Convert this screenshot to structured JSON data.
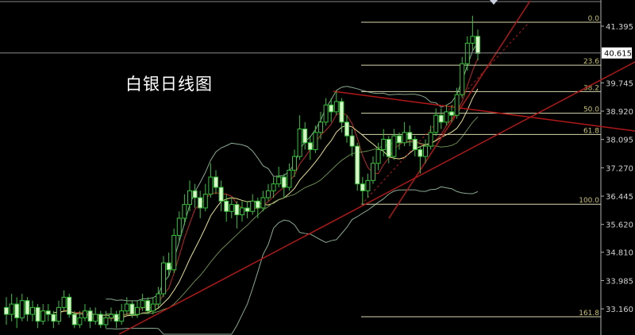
{
  "chart_data": {
    "type": "candlestick",
    "title": "白银日线图",
    "ylim": [
      32.6,
      42.15
    ],
    "y_ticks": [
      "41.395",
      "39.745",
      "38.920",
      "38.095",
      "37.270",
      "36.445",
      "35.620",
      "34.810",
      "33.985",
      "33.160"
    ],
    "current_price": "40.615",
    "fibonacci": [
      {
        "label": "0.0",
        "price": 41.51
      },
      {
        "label": "23.6",
        "price": 40.26
      },
      {
        "label": "38.2",
        "price": 39.49
      },
      {
        "label": "50.0",
        "price": 38.86
      },
      {
        "label": "61.8",
        "price": 38.24
      },
      {
        "label": "100.0",
        "price": 36.21
      },
      {
        "label": "161.8",
        "price": 32.93
      }
    ],
    "ohlc": [
      [
        33.2,
        33.5,
        32.7,
        33.0
      ],
      [
        33.0,
        33.6,
        32.8,
        33.3
      ],
      [
        33.3,
        33.5,
        32.6,
        32.9
      ],
      [
        32.9,
        33.6,
        32.8,
        33.4
      ],
      [
        33.4,
        33.5,
        32.8,
        33.0
      ],
      [
        33.0,
        33.4,
        32.8,
        33.2
      ],
      [
        33.2,
        33.3,
        32.6,
        32.8
      ],
      [
        32.8,
        33.3,
        32.7,
        33.1
      ],
      [
        33.1,
        33.3,
        32.8,
        33.0
      ],
      [
        33.0,
        33.1,
        32.6,
        32.8
      ],
      [
        32.8,
        33.4,
        32.7,
        33.2
      ],
      [
        33.2,
        33.7,
        33.1,
        33.5
      ],
      [
        33.5,
        33.6,
        32.9,
        33.0
      ],
      [
        33.0,
        33.1,
        32.6,
        32.7
      ],
      [
        32.7,
        33.1,
        32.6,
        32.9
      ],
      [
        32.9,
        33.3,
        32.8,
        33.1
      ],
      [
        33.1,
        33.2,
        32.6,
        32.8
      ],
      [
        32.8,
        33.2,
        32.7,
        33.0
      ],
      [
        33.0,
        33.1,
        32.6,
        32.7
      ],
      [
        32.7,
        33.1,
        32.6,
        32.9
      ],
      [
        32.9,
        33.2,
        32.8,
        33.0
      ],
      [
        33.0,
        33.1,
        32.6,
        32.8
      ],
      [
        32.8,
        33.3,
        32.7,
        33.1
      ],
      [
        33.1,
        33.5,
        33.0,
        33.3
      ],
      [
        33.3,
        33.4,
        32.9,
        33.0
      ],
      [
        33.0,
        33.4,
        32.9,
        33.2
      ],
      [
        33.2,
        33.6,
        33.1,
        33.4
      ],
      [
        33.4,
        33.5,
        33.0,
        33.1
      ],
      [
        33.1,
        33.5,
        33.0,
        33.3
      ],
      [
        33.3,
        33.8,
        33.2,
        33.6
      ],
      [
        33.6,
        34.7,
        33.5,
        34.5
      ],
      [
        34.5,
        34.8,
        34.1,
        34.3
      ],
      [
        34.3,
        35.5,
        34.2,
        35.3
      ],
      [
        35.3,
        36.0,
        35.1,
        35.8
      ],
      [
        35.8,
        36.5,
        35.6,
        36.2
      ],
      [
        36.2,
        36.9,
        36.0,
        36.6
      ],
      [
        36.6,
        36.8,
        36.1,
        36.4
      ],
      [
        36.4,
        36.6,
        35.8,
        36.1
      ],
      [
        36.1,
        36.8,
        36.0,
        36.5
      ],
      [
        36.5,
        37.4,
        36.4,
        37.0
      ],
      [
        37.0,
        37.2,
        36.5,
        36.7
      ],
      [
        36.7,
        36.9,
        36.0,
        36.3
      ],
      [
        36.3,
        36.5,
        35.7,
        36.0
      ],
      [
        36.0,
        36.4,
        35.8,
        36.2
      ],
      [
        36.2,
        36.3,
        35.5,
        35.9
      ],
      [
        35.9,
        36.3,
        35.7,
        36.1
      ],
      [
        36.1,
        36.3,
        35.8,
        36.0
      ],
      [
        36.0,
        36.5,
        35.9,
        36.3
      ],
      [
        36.3,
        36.4,
        35.8,
        36.1
      ],
      [
        36.1,
        36.6,
        36.0,
        36.4
      ],
      [
        36.4,
        36.8,
        36.3,
        36.6
      ],
      [
        36.6,
        37.0,
        36.4,
        36.8
      ],
      [
        36.8,
        37.3,
        36.7,
        37.0
      ],
      [
        37.0,
        37.1,
        36.4,
        36.7
      ],
      [
        36.7,
        37.4,
        36.6,
        37.2
      ],
      [
        37.2,
        37.8,
        37.0,
        37.6
      ],
      [
        37.6,
        38.8,
        37.5,
        38.4
      ],
      [
        38.4,
        38.6,
        37.8,
        38.0
      ],
      [
        38.0,
        38.2,
        37.5,
        37.8
      ],
      [
        37.8,
        38.5,
        37.7,
        38.3
      ],
      [
        38.3,
        38.9,
        38.1,
        38.6
      ],
      [
        38.6,
        39.3,
        38.5,
        39.1
      ],
      [
        39.1,
        39.3,
        38.6,
        38.9
      ],
      [
        38.9,
        39.5,
        38.8,
        39.2
      ],
      [
        39.2,
        39.3,
        38.3,
        38.6
      ],
      [
        38.6,
        38.8,
        38.0,
        38.2
      ],
      [
        38.2,
        38.4,
        37.6,
        37.9
      ],
      [
        37.9,
        38.0,
        36.6,
        36.8
      ],
      [
        36.8,
        37.0,
        36.2,
        36.6
      ],
      [
        36.6,
        37.1,
        36.4,
        36.9
      ],
      [
        36.9,
        37.6,
        36.8,
        37.4
      ],
      [
        37.4,
        38.0,
        37.2,
        37.8
      ],
      [
        37.8,
        38.4,
        37.6,
        38.1
      ],
      [
        38.1,
        38.2,
        37.4,
        37.6
      ],
      [
        37.6,
        38.4,
        37.5,
        38.2
      ],
      [
        38.2,
        38.3,
        37.8,
        38.0
      ],
      [
        38.0,
        38.6,
        37.9,
        38.3
      ],
      [
        38.3,
        38.5,
        37.9,
        38.1
      ],
      [
        38.1,
        38.2,
        37.6,
        37.8
      ],
      [
        37.8,
        37.9,
        37.1,
        37.6
      ],
      [
        37.6,
        38.1,
        37.4,
        37.9
      ],
      [
        37.9,
        38.5,
        37.8,
        38.3
      ],
      [
        38.3,
        39.0,
        38.2,
        38.8
      ],
      [
        38.8,
        39.0,
        38.4,
        38.6
      ],
      [
        38.6,
        39.1,
        38.5,
        38.9
      ],
      [
        38.9,
        39.1,
        38.6,
        38.8
      ],
      [
        38.8,
        39.6,
        38.7,
        39.4
      ],
      [
        39.4,
        40.5,
        39.3,
        40.3
      ],
      [
        40.3,
        41.1,
        40.1,
        40.9
      ],
      [
        40.9,
        41.7,
        40.7,
        41.1
      ],
      [
        41.1,
        41.3,
        40.4,
        40.6
      ]
    ],
    "moving_averages": [
      {
        "period": 5,
        "color": "#c0282a"
      },
      {
        "period": 10,
        "color": "#e8e090"
      },
      {
        "period": 20,
        "color": "#6a8a50"
      }
    ],
    "bollinger": {
      "period": 20,
      "color": "#8aa890"
    },
    "colors": {
      "bull": "#37c23b",
      "bear": "#d8f5c8",
      "fib": "#d8d8b0",
      "trend": "#b01818",
      "axis": "#b0b0b0"
    }
  }
}
